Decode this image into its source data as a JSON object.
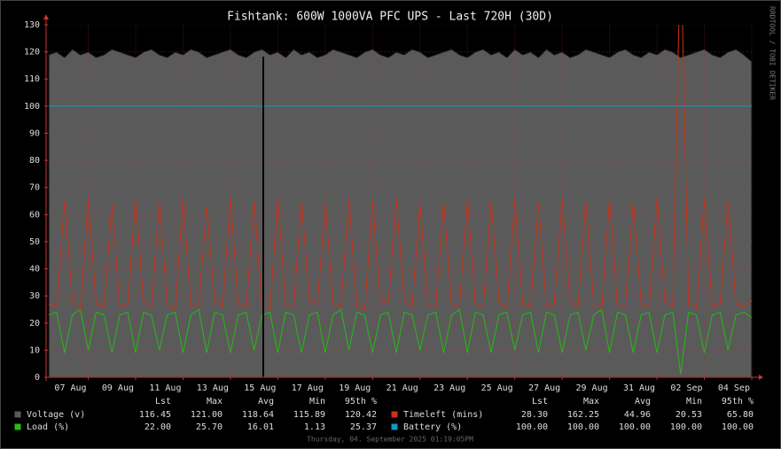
{
  "chart_data": {
    "type": "line",
    "title": "Fishtank: 600W 1000VA PFC UPS - Last 720H (30D)",
    "watermark": "RRDTOOL / TOBI OETIKER",
    "footer": "Thursday, 04. September 2025 01:19:05PM",
    "x": [
      null,
      null,
      null,
      null,
      null,
      "07 Aug",
      null,
      null,
      null,
      null,
      null,
      "09 Aug",
      null,
      null,
      null,
      null,
      null,
      "11 Aug",
      null,
      null,
      null,
      null,
      null,
      "13 Aug",
      null,
      null,
      null,
      null,
      null,
      "15 Aug",
      null,
      null,
      null,
      null,
      null,
      "17 Aug",
      null,
      null,
      null,
      null,
      null,
      "19 Aug",
      null,
      null,
      null,
      null,
      null,
      "21 Aug",
      null,
      null,
      null,
      null,
      null,
      "23 Aug",
      null,
      null,
      null,
      null,
      null,
      "25 Aug",
      null,
      null,
      null,
      null,
      null,
      "27 Aug",
      null,
      null,
      null,
      null,
      null,
      "29 Aug",
      null,
      null,
      null,
      null,
      null,
      "31 Aug",
      null,
      null,
      null,
      null,
      null,
      "02 Sep",
      null,
      null,
      null,
      null,
      null,
      "04 Sep"
    ],
    "ylim": [
      0,
      130
    ],
    "yticks": [
      0,
      10,
      20,
      30,
      40,
      50,
      60,
      70,
      80,
      90,
      100,
      110,
      120,
      130
    ],
    "grid": true,
    "stats_header": [
      "Lst",
      "Max",
      "Avg",
      "Min",
      "95th %"
    ],
    "series": [
      {
        "name": "Voltage (v)",
        "color": "#5a5a5a",
        "fill": true,
        "stats": [
          "116.45",
          "121.00",
          "118.64",
          "115.89",
          "120.42"
        ],
        "values": [
          119,
          120,
          118,
          121,
          119,
          120,
          118,
          119,
          121,
          120,
          119,
          118,
          120,
          121,
          119,
          118,
          120,
          119,
          121,
          120,
          118,
          119,
          120,
          121,
          119,
          118,
          120,
          121,
          119,
          120,
          118,
          121,
          119,
          120,
          118,
          119,
          121,
          120,
          119,
          118,
          120,
          121,
          119,
          118,
          120,
          119,
          121,
          120,
          118,
          119,
          120,
          121,
          119,
          118,
          120,
          121,
          119,
          120,
          118,
          121,
          119,
          120,
          118,
          121,
          119,
          120,
          118,
          119,
          121,
          120,
          119,
          118,
          120,
          121,
          119,
          118,
          120,
          119,
          121,
          120,
          118,
          119,
          120,
          121,
          119,
          118,
          120,
          121,
          119,
          116.45
        ]
      },
      {
        "name": "Load (%)",
        "color": "#24bc14",
        "stats": [
          "22.00",
          "25.70",
          "16.01",
          "1.13",
          "25.37"
        ],
        "values": [
          23,
          24,
          9,
          23,
          25,
          10,
          24,
          23,
          9,
          23,
          24,
          9,
          24,
          23,
          10,
          23,
          24,
          9,
          23,
          25,
          9,
          24,
          23,
          9,
          23,
          24,
          10,
          23,
          24,
          9,
          24,
          23,
          9,
          23,
          24,
          9,
          23,
          25,
          10,
          24,
          23,
          9,
          23,
          24,
          9,
          24,
          23,
          10,
          23,
          24,
          9,
          23,
          25,
          9,
          24,
          23,
          9,
          23,
          24,
          10,
          23,
          24,
          9,
          24,
          23,
          9,
          23,
          24,
          10,
          23,
          25,
          9,
          24,
          23,
          9,
          23,
          24,
          9,
          23,
          24,
          1.13,
          24,
          23,
          9,
          23,
          24,
          10,
          23,
          24,
          22
        ]
      },
      {
        "name": "Timeleft (mins)",
        "color": "#cc3118",
        "stats": [
          "28.30",
          "162.25",
          "44.96",
          "20.53",
          "65.80"
        ],
        "values": [
          27,
          26,
          65,
          28,
          25,
          66,
          27,
          26,
          64,
          26,
          27,
          66,
          28,
          26,
          65,
          27,
          25,
          66,
          26,
          27,
          63,
          28,
          26,
          66,
          27,
          26,
          65,
          26,
          25,
          66,
          27,
          26,
          65,
          28,
          27,
          64,
          27,
          26,
          66,
          26,
          25,
          65,
          27,
          28,
          66,
          28,
          26,
          64,
          27,
          26,
          65,
          26,
          27,
          66,
          27,
          26,
          65,
          28,
          25,
          66,
          27,
          26,
          64,
          26,
          27,
          66,
          28,
          26,
          65,
          27,
          25,
          66,
          26,
          27,
          65,
          27,
          26,
          66,
          28,
          26,
          162.25,
          27,
          25,
          66,
          26,
          27,
          65,
          27,
          26,
          28.3
        ]
      },
      {
        "name": "Battery (%)",
        "color": "#1598c3",
        "stats": [
          "100.00",
          "100.00",
          "100.00",
          "100.00",
          "100.00"
        ],
        "values": [
          100,
          100,
          100,
          100,
          100,
          100,
          100,
          100,
          100,
          100,
          100,
          100,
          100,
          100,
          100,
          100,
          100,
          100,
          100,
          100,
          100,
          100,
          100,
          100,
          100,
          100,
          100,
          100,
          100,
          100,
          100,
          100,
          100,
          100,
          100,
          100,
          100,
          100,
          100,
          100,
          100,
          100,
          100,
          100,
          100,
          100,
          100,
          100,
          100,
          100,
          100,
          100,
          100,
          100,
          100,
          100,
          100,
          100,
          100,
          100,
          100,
          100,
          100,
          100,
          100,
          100,
          100,
          100,
          100,
          100,
          100,
          100,
          100,
          100,
          100,
          100,
          100,
          100,
          100,
          100,
          100,
          100,
          100,
          100,
          100,
          100,
          100,
          100,
          100,
          100
        ]
      }
    ]
  }
}
